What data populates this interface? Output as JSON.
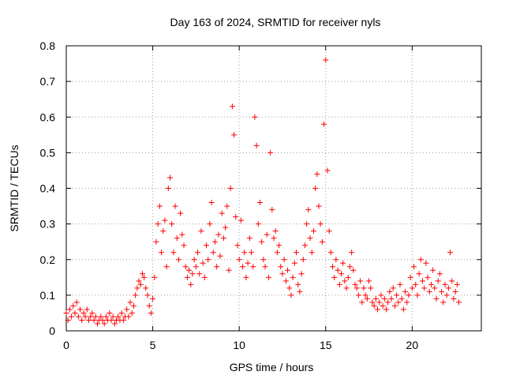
{
  "chart_data": {
    "type": "scatter",
    "title": "Day 163 of 2024, SRMTID for receiver nyls",
    "xlabel": "GPS time / hours",
    "ylabel": "SRMTID / TECUs",
    "xlim": [
      0,
      24
    ],
    "ylim": [
      0,
      0.8
    ],
    "xticks": [
      0,
      5,
      10,
      15,
      20
    ],
    "yticks": [
      0,
      0.1,
      0.2,
      0.3,
      0.4,
      0.5,
      0.6,
      0.7,
      0.8
    ],
    "xtick_labels": [
      "0",
      "5",
      "10",
      "15",
      "20"
    ],
    "ytick_labels": [
      "0",
      "0.1",
      "0.2",
      "0.3",
      "0.4",
      "0.5",
      "0.6",
      "0.7",
      "0.8"
    ],
    "grid": true,
    "marker": "+",
    "color": "#ff0000",
    "series": [
      {
        "name": "SRMTID",
        "x": [
          0.0,
          0.1,
          0.2,
          0.3,
          0.4,
          0.5,
          0.6,
          0.7,
          0.8,
          0.9,
          1.0,
          1.1,
          1.2,
          1.3,
          1.4,
          1.5,
          1.6,
          1.7,
          1.8,
          1.9,
          2.0,
          2.1,
          2.2,
          2.3,
          2.4,
          2.5,
          2.6,
          2.7,
          2.8,
          2.9,
          3.0,
          3.1,
          3.2,
          3.3,
          3.4,
          3.5,
          3.6,
          3.7,
          3.8,
          3.9,
          4.0,
          4.1,
          4.2,
          4.3,
          4.4,
          4.5,
          4.6,
          4.7,
          4.8,
          4.9,
          5.0,
          5.1,
          5.2,
          5.3,
          5.4,
          5.5,
          5.6,
          5.7,
          5.8,
          5.9,
          6.0,
          6.1,
          6.2,
          6.3,
          6.4,
          6.5,
          6.6,
          6.7,
          6.8,
          6.9,
          7.0,
          7.1,
          7.2,
          7.3,
          7.4,
          7.5,
          7.6,
          7.7,
          7.8,
          7.9,
          8.0,
          8.1,
          8.2,
          8.3,
          8.4,
          8.5,
          8.6,
          8.7,
          8.8,
          8.9,
          9.0,
          9.1,
          9.2,
          9.3,
          9.4,
          9.5,
          9.6,
          9.7,
          9.8,
          9.9,
          10.0,
          10.1,
          10.2,
          10.3,
          10.4,
          10.5,
          10.6,
          10.7,
          10.8,
          10.9,
          11.0,
          11.1,
          11.2,
          11.3,
          11.4,
          11.5,
          11.6,
          11.7,
          11.8,
          11.9,
          12.0,
          12.1,
          12.2,
          12.3,
          12.4,
          12.5,
          12.6,
          12.7,
          12.8,
          12.9,
          13.0,
          13.1,
          13.2,
          13.3,
          13.4,
          13.5,
          13.6,
          13.7,
          13.8,
          13.9,
          14.0,
          14.1,
          14.2,
          14.3,
          14.4,
          14.5,
          14.6,
          14.7,
          14.8,
          14.9,
          15.0,
          15.1,
          15.2,
          15.3,
          15.4,
          15.5,
          15.6,
          15.7,
          15.8,
          15.9,
          16.0,
          16.1,
          16.2,
          16.3,
          16.4,
          16.5,
          16.6,
          16.7,
          16.8,
          16.9,
          17.0,
          17.1,
          17.2,
          17.3,
          17.4,
          17.5,
          17.6,
          17.7,
          17.8,
          17.9,
          18.0,
          18.1,
          18.2,
          18.3,
          18.4,
          18.5,
          18.6,
          18.7,
          18.8,
          18.9,
          19.0,
          19.1,
          19.2,
          19.3,
          19.4,
          19.5,
          19.6,
          19.7,
          19.8,
          19.9,
          20.0,
          20.1,
          20.2,
          20.3,
          20.4,
          20.5,
          20.6,
          20.7,
          20.8,
          20.9,
          21.0,
          21.1,
          21.2,
          21.3,
          21.4,
          21.5,
          21.6,
          21.7,
          21.8,
          21.9,
          22.0,
          22.1,
          22.2,
          22.3,
          22.4,
          22.5,
          22.6,
          22.7
        ],
        "y": [
          0.05,
          0.03,
          0.06,
          0.04,
          0.07,
          0.05,
          0.08,
          0.04,
          0.06,
          0.03,
          0.05,
          0.04,
          0.06,
          0.03,
          0.04,
          0.05,
          0.03,
          0.04,
          0.02,
          0.03,
          0.04,
          0.03,
          0.02,
          0.04,
          0.03,
          0.05,
          0.03,
          0.04,
          0.02,
          0.03,
          0.04,
          0.03,
          0.05,
          0.03,
          0.04,
          0.06,
          0.04,
          0.08,
          0.05,
          0.07,
          0.1,
          0.12,
          0.14,
          0.13,
          0.16,
          0.15,
          0.12,
          0.1,
          0.07,
          0.05,
          0.09,
          0.15,
          0.25,
          0.3,
          0.35,
          0.22,
          0.28,
          0.31,
          0.18,
          0.4,
          0.43,
          0.3,
          0.22,
          0.35,
          0.26,
          0.2,
          0.33,
          0.27,
          0.24,
          0.18,
          0.15,
          0.17,
          0.13,
          0.16,
          0.2,
          0.18,
          0.22,
          0.16,
          0.28,
          0.19,
          0.15,
          0.24,
          0.2,
          0.3,
          0.36,
          0.22,
          0.25,
          0.18,
          0.27,
          0.21,
          0.33,
          0.26,
          0.29,
          0.35,
          0.17,
          0.4,
          0.63,
          0.55,
          0.32,
          0.24,
          0.2,
          0.31,
          0.18,
          0.22,
          0.15,
          0.19,
          0.26,
          0.22,
          0.18,
          0.6,
          0.52,
          0.3,
          0.36,
          0.25,
          0.2,
          0.18,
          0.27,
          0.15,
          0.5,
          0.34,
          0.26,
          0.28,
          0.22,
          0.24,
          0.18,
          0.16,
          0.2,
          0.14,
          0.17,
          0.12,
          0.1,
          0.15,
          0.19,
          0.22,
          0.13,
          0.11,
          0.16,
          0.2,
          0.24,
          0.3,
          0.34,
          0.26,
          0.22,
          0.28,
          0.4,
          0.44,
          0.35,
          0.3,
          0.25,
          0.58,
          0.76,
          0.45,
          0.28,
          0.22,
          0.18,
          0.15,
          0.2,
          0.17,
          0.13,
          0.16,
          0.19,
          0.14,
          0.12,
          0.15,
          0.18,
          0.22,
          0.17,
          0.13,
          0.12,
          0.1,
          0.14,
          0.08,
          0.12,
          0.1,
          0.09,
          0.14,
          0.12,
          0.08,
          0.07,
          0.09,
          0.06,
          0.08,
          0.1,
          0.07,
          0.09,
          0.06,
          0.08,
          0.11,
          0.09,
          0.12,
          0.07,
          0.1,
          0.08,
          0.13,
          0.09,
          0.06,
          0.11,
          0.08,
          0.1,
          0.15,
          0.12,
          0.18,
          0.13,
          0.1,
          0.16,
          0.2,
          0.14,
          0.12,
          0.19,
          0.15,
          0.11,
          0.13,
          0.17,
          0.12,
          0.09,
          0.14,
          0.16,
          0.11,
          0.08,
          0.13,
          0.1,
          0.12,
          0.22,
          0.14,
          0.09,
          0.11,
          0.13,
          0.08
        ]
      }
    ]
  }
}
